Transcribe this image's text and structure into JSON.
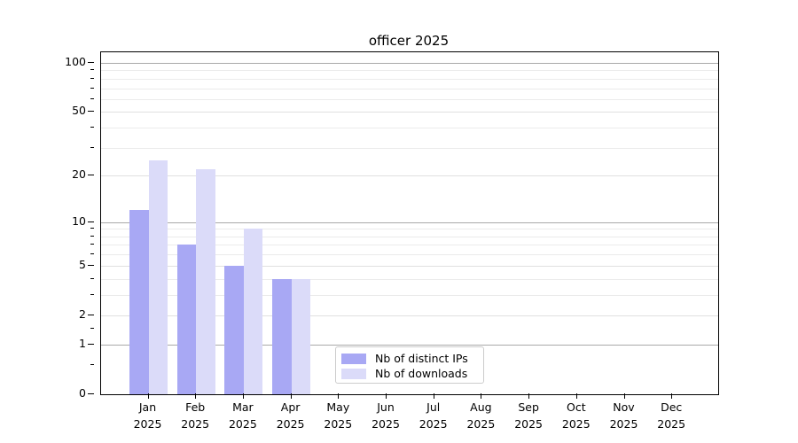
{
  "title": "officer 2025",
  "colors": {
    "distinct_ips": "#a8a8f4",
    "downloads": "#dbdbf9",
    "grid_decade": "#a9a9a9",
    "grid_mid": "#e0e0e0",
    "grid_minor": "#ebebeb",
    "spine": "#000000",
    "legend_border": "#cccccc"
  },
  "legend": {
    "items": [
      {
        "label": "Nb of distinct IPs",
        "color_key": "distinct_ips"
      },
      {
        "label": "Nb of downloads",
        "color_key": "downloads"
      }
    ]
  },
  "y_axis": {
    "tick_labels": [
      "0",
      "1",
      "2",
      "5",
      "10",
      "20",
      "50",
      "100"
    ],
    "minor_tick_values": [
      0.5,
      1.5,
      3,
      4,
      6,
      7,
      8,
      9,
      30,
      40,
      60,
      70,
      80,
      90
    ],
    "scale_note": "log10(1+v)"
  },
  "chart_data": {
    "type": "bar",
    "title": "officer 2025",
    "categories": [
      "Jan 2025",
      "Feb 2025",
      "Mar 2025",
      "Apr 2025",
      "May 2025",
      "Jun 2025",
      "Jul 2025",
      "Aug 2025",
      "Sep 2025",
      "Oct 2025",
      "Nov 2025",
      "Dec 2025"
    ],
    "series": [
      {
        "name": "Nb of distinct IPs",
        "values": [
          12,
          7,
          5,
          4,
          0,
          0,
          0,
          0,
          0,
          0,
          0,
          0
        ],
        "color": "#a8a8f4"
      },
      {
        "name": "Nb of downloads",
        "values": [
          25,
          22,
          9,
          4,
          0,
          0,
          0,
          0,
          0,
          0,
          0,
          0
        ],
        "color": "#dbdbf9"
      }
    ],
    "y_scale": "log1p",
    "y_ticks": [
      0,
      1,
      2,
      5,
      10,
      20,
      50,
      100
    ],
    "ylim": [
      0,
      114
    ],
    "xlabel": "",
    "ylabel": "",
    "grid": true,
    "legend_position": "inside-lower-center"
  }
}
